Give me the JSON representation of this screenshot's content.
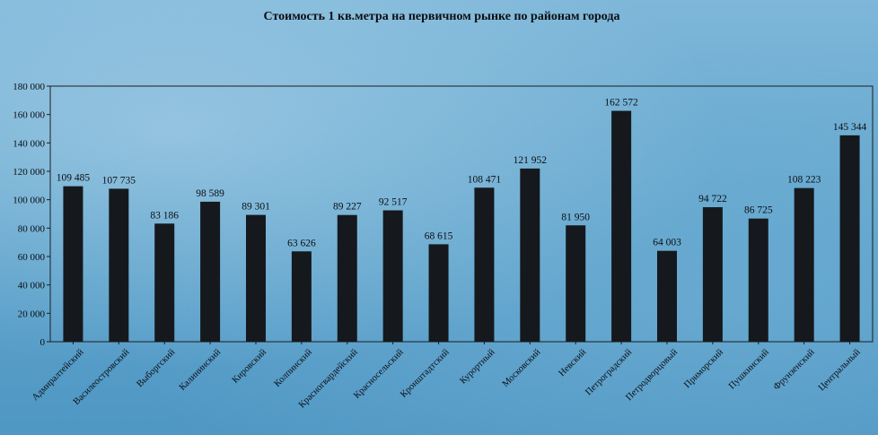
{
  "chart_data": {
    "type": "bar",
    "title": "Стоимость 1 кв.метра на первичном  рынке по районам  города",
    "xlabel": "",
    "ylabel": "",
    "ylim": [
      0,
      180000
    ],
    "yticks": [
      0,
      20000,
      40000,
      60000,
      80000,
      100000,
      120000,
      140000,
      160000,
      180000
    ],
    "ytick_labels": [
      "0",
      "20 000",
      "40 000",
      "60 000",
      "80 000",
      "100 000",
      "120 000",
      "140 000",
      "160 000",
      "180 000"
    ],
    "grid": false,
    "legend": "none",
    "categories": [
      "Адмиралтейский",
      "Василеостровский",
      "Выборгский",
      "Калининский",
      "Кировский",
      "Колпинский",
      "Красногвардейский",
      "Красносельский",
      "Кронштадтский",
      "Курортный",
      "Московский",
      "Невский",
      "Петроградский",
      "Петродворцовый",
      "Приморский",
      "Пушкинский",
      "Фрунзенский",
      "Центральный"
    ],
    "values": [
      109485,
      107735,
      83186,
      98589,
      89301,
      63626,
      89227,
      92517,
      68615,
      108471,
      121952,
      81950,
      162572,
      64003,
      94722,
      86725,
      108223,
      145344
    ],
    "value_labels": [
      "109 485",
      "107 735",
      "83 186",
      "98 589",
      "89 301",
      "63 626",
      "89 227",
      "92 517",
      "68 615",
      "108 471",
      "121 952",
      "81 950",
      "162 572",
      "64 003",
      "94 722",
      "86 725",
      "108 223",
      "145 344"
    ],
    "colors": {
      "bar": "#15191d",
      "axis": "#1a1e22",
      "text": "#0b0e12"
    }
  }
}
